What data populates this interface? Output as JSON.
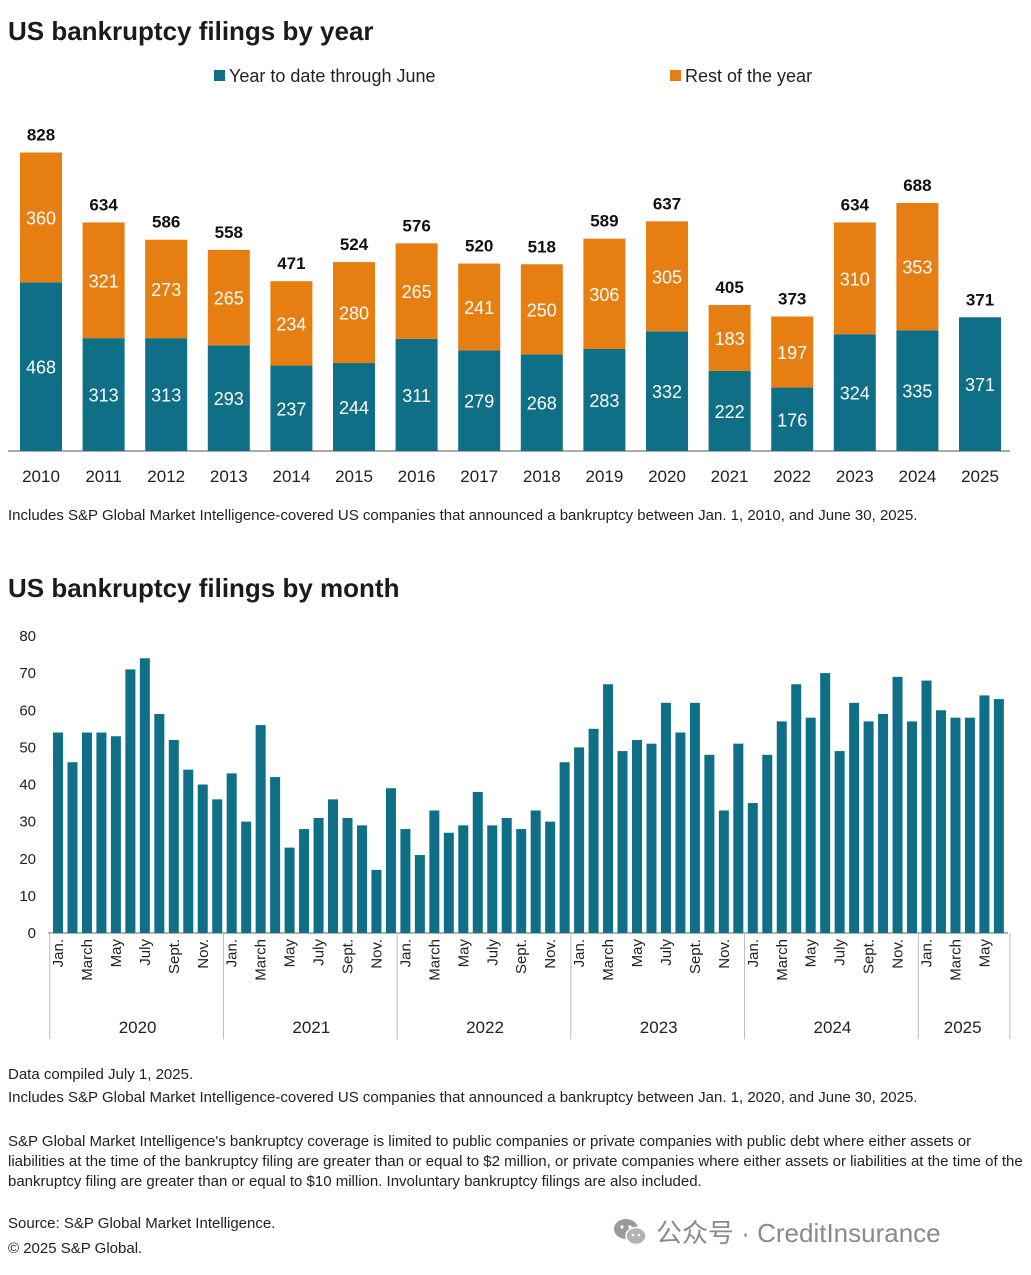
{
  "chart1": {
    "title": "US bankruptcy filings by year",
    "legend": [
      {
        "label": "Year to date through June",
        "color": "#0e6f86"
      },
      {
        "label": "Rest of the year",
        "color": "#e67e12"
      }
    ],
    "note": "Includes S&P Global Market Intelligence-covered US companies that announced a bankruptcy between Jan. 1, 2010, and June 30, 2025."
  },
  "chart2": {
    "title": "US bankruptcy filings by month"
  },
  "footer": {
    "notes": [
      "Data compiled July 1, 2025.",
      "Includes S&P Global Market Intelligence-covered US companies that announced a bankruptcy between Jan. 1, 2020, and June 30, 2025.",
      "S&P Global Market Intelligence's bankruptcy coverage is limited to public companies or private companies with public debt where either assets or liabilities at the time of the bankruptcy filing are greater than or equal to $2 million, or private companies where either assets or liabilities at the time of the bankruptcy filing are greater than or equal to $10 million. Involuntary bankruptcy filings are also included.",
      "Source: S&P Global Market Intelligence.",
      "© 2025 S&P Global."
    ],
    "watermark": "公众号 · CreditInsurance"
  },
  "chart_data": [
    {
      "type": "bar",
      "stacked": true,
      "title": "US bankruptcy filings by year",
      "categories": [
        "2010",
        "2011",
        "2012",
        "2013",
        "2014",
        "2015",
        "2016",
        "2017",
        "2018",
        "2019",
        "2020",
        "2021",
        "2022",
        "2023",
        "2024",
        "2025"
      ],
      "series": [
        {
          "name": "Year to date through June",
          "color": "#0e6f86",
          "values": [
            468,
            313,
            313,
            293,
            237,
            244,
            311,
            279,
            268,
            283,
            332,
            222,
            176,
            324,
            335,
            371
          ]
        },
        {
          "name": "Rest of the year",
          "color": "#e67e12",
          "values": [
            360,
            321,
            273,
            265,
            234,
            280,
            265,
            241,
            250,
            306,
            305,
            183,
            197,
            310,
            353,
            null
          ]
        }
      ],
      "totals": [
        828,
        634,
        586,
        558,
        471,
        524,
        576,
        520,
        518,
        589,
        637,
        405,
        373,
        634,
        688,
        371
      ],
      "legend_position": "top",
      "grid": false
    },
    {
      "type": "bar",
      "title": "US bankruptcy filings by month",
      "color": "#0e6f86",
      "ylim": [
        0,
        80
      ],
      "yticks": [
        0,
        10,
        20,
        30,
        40,
        50,
        60,
        70,
        80
      ],
      "month_labels": [
        "Jan.",
        "",
        "March",
        "",
        "May",
        "",
        "July",
        "",
        "Sept.",
        "",
        "Nov.",
        ""
      ],
      "years": [
        {
          "label": "2020",
          "values": [
            54,
            46,
            54,
            54,
            53,
            71,
            74,
            59,
            52,
            44,
            40,
            36
          ]
        },
        {
          "label": "2021",
          "values": [
            43,
            30,
            56,
            42,
            23,
            28,
            31,
            36,
            31,
            29,
            17,
            39
          ]
        },
        {
          "label": "2022",
          "values": [
            28,
            21,
            33,
            27,
            29,
            38,
            29,
            31,
            28,
            33,
            30,
            46
          ]
        },
        {
          "label": "2023",
          "values": [
            50,
            55,
            67,
            49,
            52,
            51,
            62,
            54,
            62,
            48,
            33,
            51
          ]
        },
        {
          "label": "2024",
          "values": [
            35,
            48,
            57,
            67,
            58,
            70,
            49,
            62,
            57,
            59,
            69,
            57
          ]
        },
        {
          "label": "2025",
          "values": [
            68,
            60,
            58,
            58,
            64,
            63
          ]
        }
      ],
      "grid": false
    }
  ]
}
